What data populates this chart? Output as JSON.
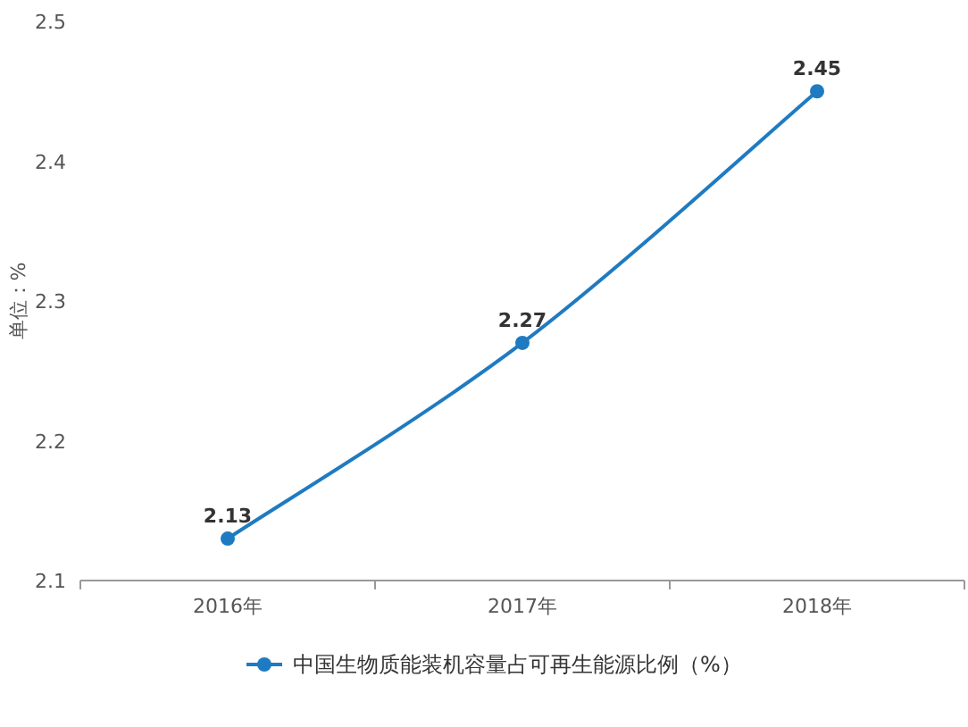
{
  "chart_data": {
    "type": "line",
    "ylabel": "单位：%",
    "categories": [
      "2016年",
      "2017年",
      "2018年"
    ],
    "series": [
      {
        "name": "中国生物质能装机容量占可再生能源比例（%）",
        "color": "#1f7bc1",
        "values": [
          2.13,
          2.27,
          2.45
        ]
      }
    ],
    "ylim": [
      2.1,
      2.5
    ],
    "yticks": [
      2.1,
      2.2,
      2.3,
      2.4,
      2.5
    ],
    "data_labels": true,
    "legend": "bottom",
    "marker": "circle"
  }
}
